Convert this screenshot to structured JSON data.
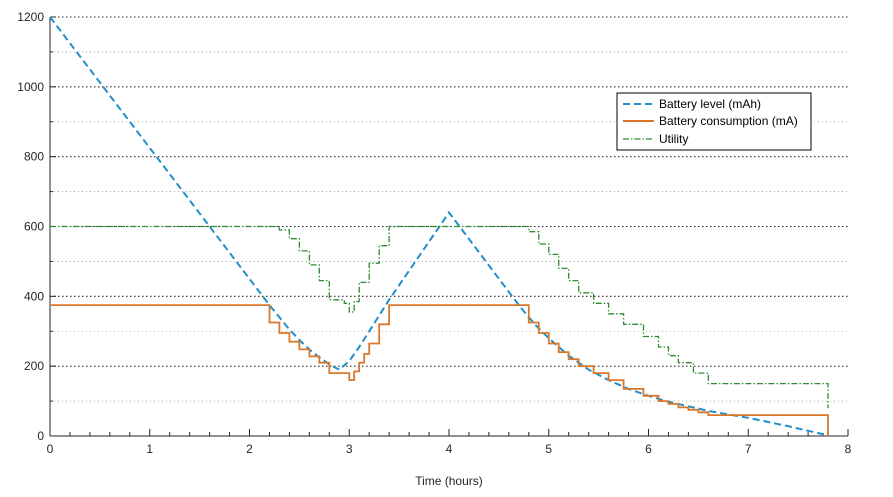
{
  "chart_data": {
    "type": "line",
    "xlabel": "Time (hours)",
    "ylabel": "",
    "xlim": [
      0,
      8
    ],
    "ylim": [
      0,
      1200
    ],
    "x_ticks": [
      0,
      1,
      2,
      3,
      4,
      5,
      6,
      7,
      8
    ],
    "y_ticks": [
      0,
      200,
      400,
      600,
      800,
      1000,
      1200
    ],
    "x_minor_step": 0.2,
    "y_minor_step": 100,
    "grid": "y-major-dotted-and-minor",
    "legend_position": "top-right",
    "series": [
      {
        "name": "Battery level (mAh)",
        "style": "dashed",
        "color": "#1f8fc8",
        "x": [
          0,
          2.2,
          2.3,
          2.4,
          2.5,
          2.6,
          2.7,
          2.8,
          2.9,
          3.0,
          3.1,
          3.2,
          3.3,
          3.4,
          4.0,
          4.7,
          4.8,
          4.9,
          5.0,
          5.2,
          5.4,
          5.6,
          5.8,
          6.0,
          6.2,
          6.4,
          6.6,
          6.8,
          7.0,
          7.2,
          7.4,
          7.6,
          7.8
        ],
        "y": [
          1200,
          375,
          340,
          305,
          275,
          248,
          225,
          205,
          190,
          215,
          255,
          300,
          345,
          390,
          640,
          375,
          340,
          308,
          280,
          230,
          190,
          160,
          135,
          115,
          98,
          85,
          72,
          62,
          52,
          40,
          28,
          15,
          2
        ]
      },
      {
        "name": "Battery consumption (mA)",
        "style": "step",
        "color": "#d9782d",
        "x": [
          0,
          2.2,
          2.3,
          2.4,
          2.5,
          2.6,
          2.7,
          2.8,
          2.95,
          3.0,
          3.05,
          3.1,
          3.15,
          3.2,
          3.3,
          3.4,
          4.7,
          4.8,
          4.9,
          5.0,
          5.1,
          5.2,
          5.3,
          5.45,
          5.6,
          5.75,
          5.95,
          6.1,
          6.2,
          6.3,
          6.4,
          6.5,
          6.6,
          7.8
        ],
        "y": [
          375,
          325,
          295,
          270,
          248,
          228,
          210,
          180,
          180,
          160,
          185,
          210,
          235,
          265,
          320,
          375,
          375,
          325,
          295,
          265,
          240,
          220,
          200,
          180,
          160,
          135,
          115,
          100,
          92,
          82,
          75,
          68,
          60,
          50
        ],
        "end_x": 7.8,
        "end_drop_to": 0
      },
      {
        "name": "Utility",
        "style": "dashdot-step",
        "color": "#2e8b30",
        "x": [
          0,
          2.3,
          2.4,
          2.5,
          2.6,
          2.7,
          2.8,
          2.95,
          3.0,
          3.05,
          3.1,
          3.2,
          3.3,
          3.4,
          4.7,
          4.8,
          4.9,
          5.0,
          5.1,
          5.2,
          5.3,
          5.45,
          5.6,
          5.75,
          5.95,
          6.1,
          6.2,
          6.3,
          6.45,
          6.6,
          7.8
        ],
        "y": [
          600,
          590,
          565,
          530,
          490,
          445,
          390,
          380,
          355,
          385,
          440,
          495,
          545,
          600,
          600,
          585,
          550,
          520,
          480,
          445,
          410,
          380,
          350,
          320,
          285,
          255,
          230,
          210,
          180,
          150,
          150
        ],
        "end_x": 7.8,
        "end_drop_to": 80
      }
    ]
  },
  "legend": {
    "items": [
      {
        "label": "Battery level (mAh)"
      },
      {
        "label": "Battery consumption (mA)"
      },
      {
        "label": "Utility"
      }
    ]
  }
}
